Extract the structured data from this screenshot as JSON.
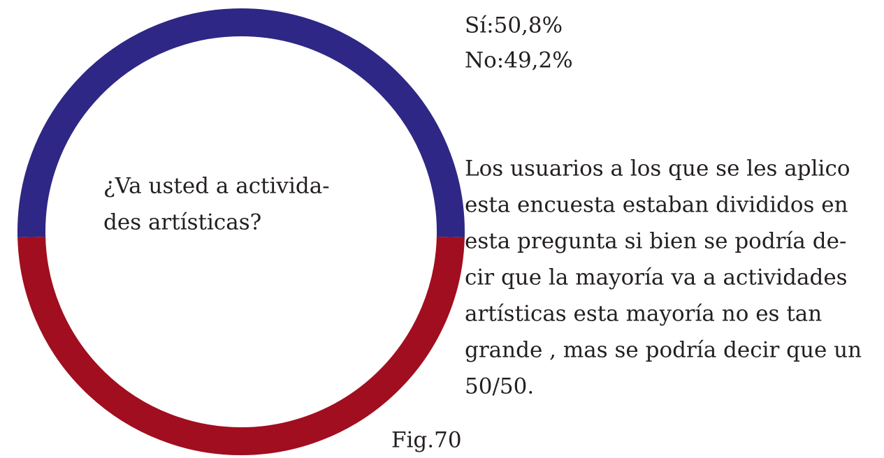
{
  "chart_data": {
    "type": "donut",
    "values": [
      50.8,
      49.2
    ],
    "value_labels": [
      "Sí:50,8%",
      "No:49,2%"
    ],
    "colors": [
      "#2e2785",
      "#a10e1f"
    ],
    "center_text": [
      "¿Va usted a activida-",
      "des artísticas?"
    ],
    "description": [
      "Los usuarios a los que se les aplico",
      "esta encuesta estaban divididos en",
      "esta pregunta si bien se podría de-",
      "cir que la mayoría va a actividades",
      "artísticas esta mayoría no es tan",
      "grande , mas se podría decir que un",
      "50/50."
    ],
    "caption": "Fig.70"
  }
}
